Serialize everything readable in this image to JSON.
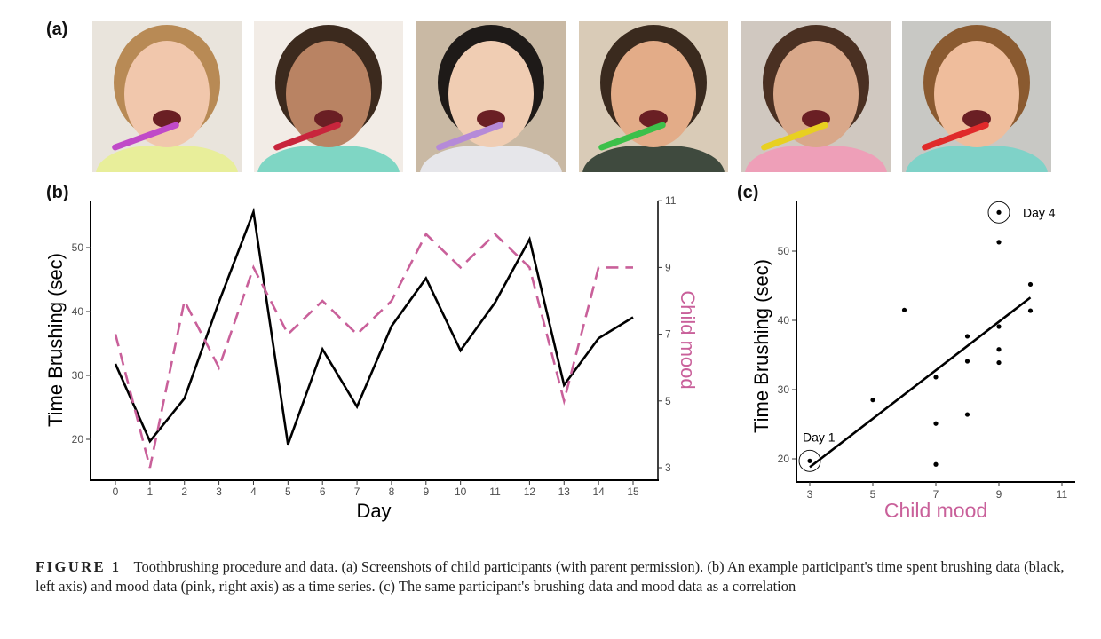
{
  "panels": {
    "a": "(a)",
    "b": "(b)",
    "c": "(c)"
  },
  "photos": [
    {
      "alt": "child-1",
      "bg": "#e9e4dc",
      "skin": "#f1c7ac",
      "hair": "#b88a55",
      "brush": "#c04ac8",
      "shirt": "#e8ee9a"
    },
    {
      "alt": "child-2",
      "bg": "#f2ece6",
      "skin": "#b98363",
      "hair": "#3c2a1e",
      "brush": "#c8253c",
      "shirt": "#7fd6c4"
    },
    {
      "alt": "child-3",
      "bg": "#c9b9a4",
      "skin": "#f0cdb3",
      "hair": "#1e1a18",
      "brush": "#b58ad8",
      "shirt": "#e6e6ea"
    },
    {
      "alt": "child-4",
      "bg": "#d9cbb7",
      "skin": "#e3ac88",
      "hair": "#3a2a1e",
      "brush": "#3cc04a",
      "shirt": "#3f4a3e"
    },
    {
      "alt": "child-5",
      "bg": "#d0c8c0",
      "skin": "#d9a88a",
      "hair": "#4a3022",
      "brush": "#e8d020",
      "shirt": "#ee9fb8"
    },
    {
      "alt": "child-6",
      "bg": "#c8c8c4",
      "skin": "#efbd9c",
      "hair": "#8a5a30",
      "brush": "#e02a2a",
      "shirt": "#7fd2c8"
    }
  ],
  "chart_data": [
    {
      "type": "line",
      "panel": "b",
      "xlabel": "Day",
      "ylabel": "Time Brushing (sec)",
      "y2label": "Child mood",
      "x": [
        0,
        1,
        2,
        3,
        4,
        5,
        6,
        7,
        8,
        9,
        10,
        11,
        12,
        13,
        14,
        15
      ],
      "x_ticks": [
        "0",
        "1",
        "2",
        "3",
        "4",
        "5",
        "6",
        "7",
        "8",
        "9",
        "10",
        "11",
        "12",
        "13",
        "14",
        "15"
      ],
      "y_ticks": [
        "20",
        "30",
        "40",
        "50"
      ],
      "y2_ticks": [
        "3",
        "5",
        "7",
        "9",
        "11"
      ],
      "ylim": [
        14,
        56
      ],
      "y2lim": [
        3,
        11
      ],
      "grid": false,
      "series": [
        {
          "axis": "left",
          "color": "#000000",
          "style": "solid",
          "values": [
            31.8,
            19.7,
            26.4,
            41.5,
            55.6,
            19.2,
            34.1,
            25.1,
            37.7,
            45.2,
            33.9,
            41.4,
            51.3,
            28.5,
            35.8,
            39.1
          ]
        },
        {
          "axis": "right",
          "color": "#c9609a",
          "style": "dashed",
          "values": [
            7,
            3,
            8,
            6,
            9,
            7,
            8,
            7,
            8,
            10,
            9,
            10,
            9,
            5,
            9,
            9
          ]
        }
      ]
    },
    {
      "type": "scatter",
      "panel": "c",
      "xlabel": "Child mood",
      "ylabel": "Time Brushing (sec)",
      "x_ticks": [
        "3",
        "5",
        "7",
        "9",
        "11"
      ],
      "y_ticks": [
        "20",
        "30",
        "40",
        "50"
      ],
      "xlim": [
        2.6,
        11.4
      ],
      "ylim": [
        16,
        57
      ],
      "grid": false,
      "points": [
        [
          7,
          31.8
        ],
        [
          3,
          19.7
        ],
        [
          8,
          26.4
        ],
        [
          6,
          41.5
        ],
        [
          9,
          55.6
        ],
        [
          7,
          19.2
        ],
        [
          8,
          34.1
        ],
        [
          7,
          25.1
        ],
        [
          8,
          37.7
        ],
        [
          10,
          45.2
        ],
        [
          9,
          33.9
        ],
        [
          10,
          41.4
        ],
        [
          9,
          51.3
        ],
        [
          5,
          28.5
        ],
        [
          9,
          35.8
        ],
        [
          9,
          39.1
        ]
      ],
      "fit_line": [
        [
          3,
          18.8
        ],
        [
          10,
          43.3
        ]
      ],
      "annotations": [
        {
          "label": "Day 1",
          "x": 3,
          "y": 19.7
        },
        {
          "label": "Day 4",
          "x": 9,
          "y": 55.6
        }
      ]
    }
  ],
  "caption": {
    "figure": "FIGURE 1",
    "text": "Toothbrushing procedure and data. (a) Screenshots of child participants (with parent permission). (b) An example participant's time spent brushing data (black, left axis) and mood data (pink, right axis) as a time series. (c) The same participant's brushing data and mood data as a correlation"
  }
}
